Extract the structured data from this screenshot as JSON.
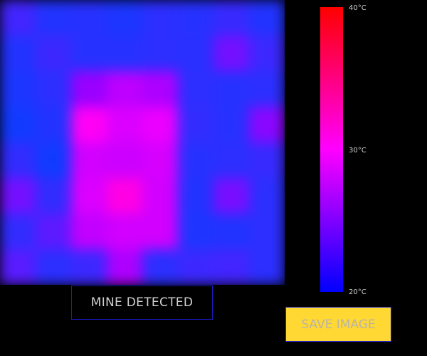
{
  "thermal_image": {
    "unit": "°C",
    "temp_min": 20,
    "temp_max": 40,
    "rows": 8,
    "cols": 8,
    "cells": [
      [
        22.8,
        21.6,
        21.8,
        21.4,
        22.0,
        21.8,
        22.4,
        21.6
      ],
      [
        21.6,
        22.6,
        21.8,
        21.8,
        22.0,
        21.9,
        24.6,
        22.6
      ],
      [
        21.4,
        22.0,
        26.0,
        27.4,
        26.8,
        22.0,
        21.8,
        22.0
      ],
      [
        21.0,
        21.6,
        30.4,
        28.6,
        29.2,
        22.2,
        21.8,
        25.4
      ],
      [
        22.2,
        21.0,
        28.2,
        28.0,
        28.4,
        21.8,
        22.0,
        22.4
      ],
      [
        24.6,
        22.2,
        28.6,
        31.0,
        28.2,
        21.6,
        24.8,
        22.0
      ],
      [
        22.2,
        23.8,
        27.6,
        28.2,
        28.2,
        21.5,
        21.6,
        22.0
      ],
      [
        23.6,
        22.0,
        22.6,
        26.8,
        22.0,
        22.6,
        22.8,
        22.0
      ]
    ]
  },
  "color_scale": {
    "max_label": "40°C",
    "mid_label": "30°C",
    "min_label": "20°C",
    "hot_color": "#ff0000",
    "mid_color": "#ff00ff",
    "cold_color": "#0000ff"
  },
  "status": {
    "text": "MINE DETECTED"
  },
  "actions": {
    "save_label": "SAVE IMAGE",
    "save_color": "#ffd833"
  }
}
